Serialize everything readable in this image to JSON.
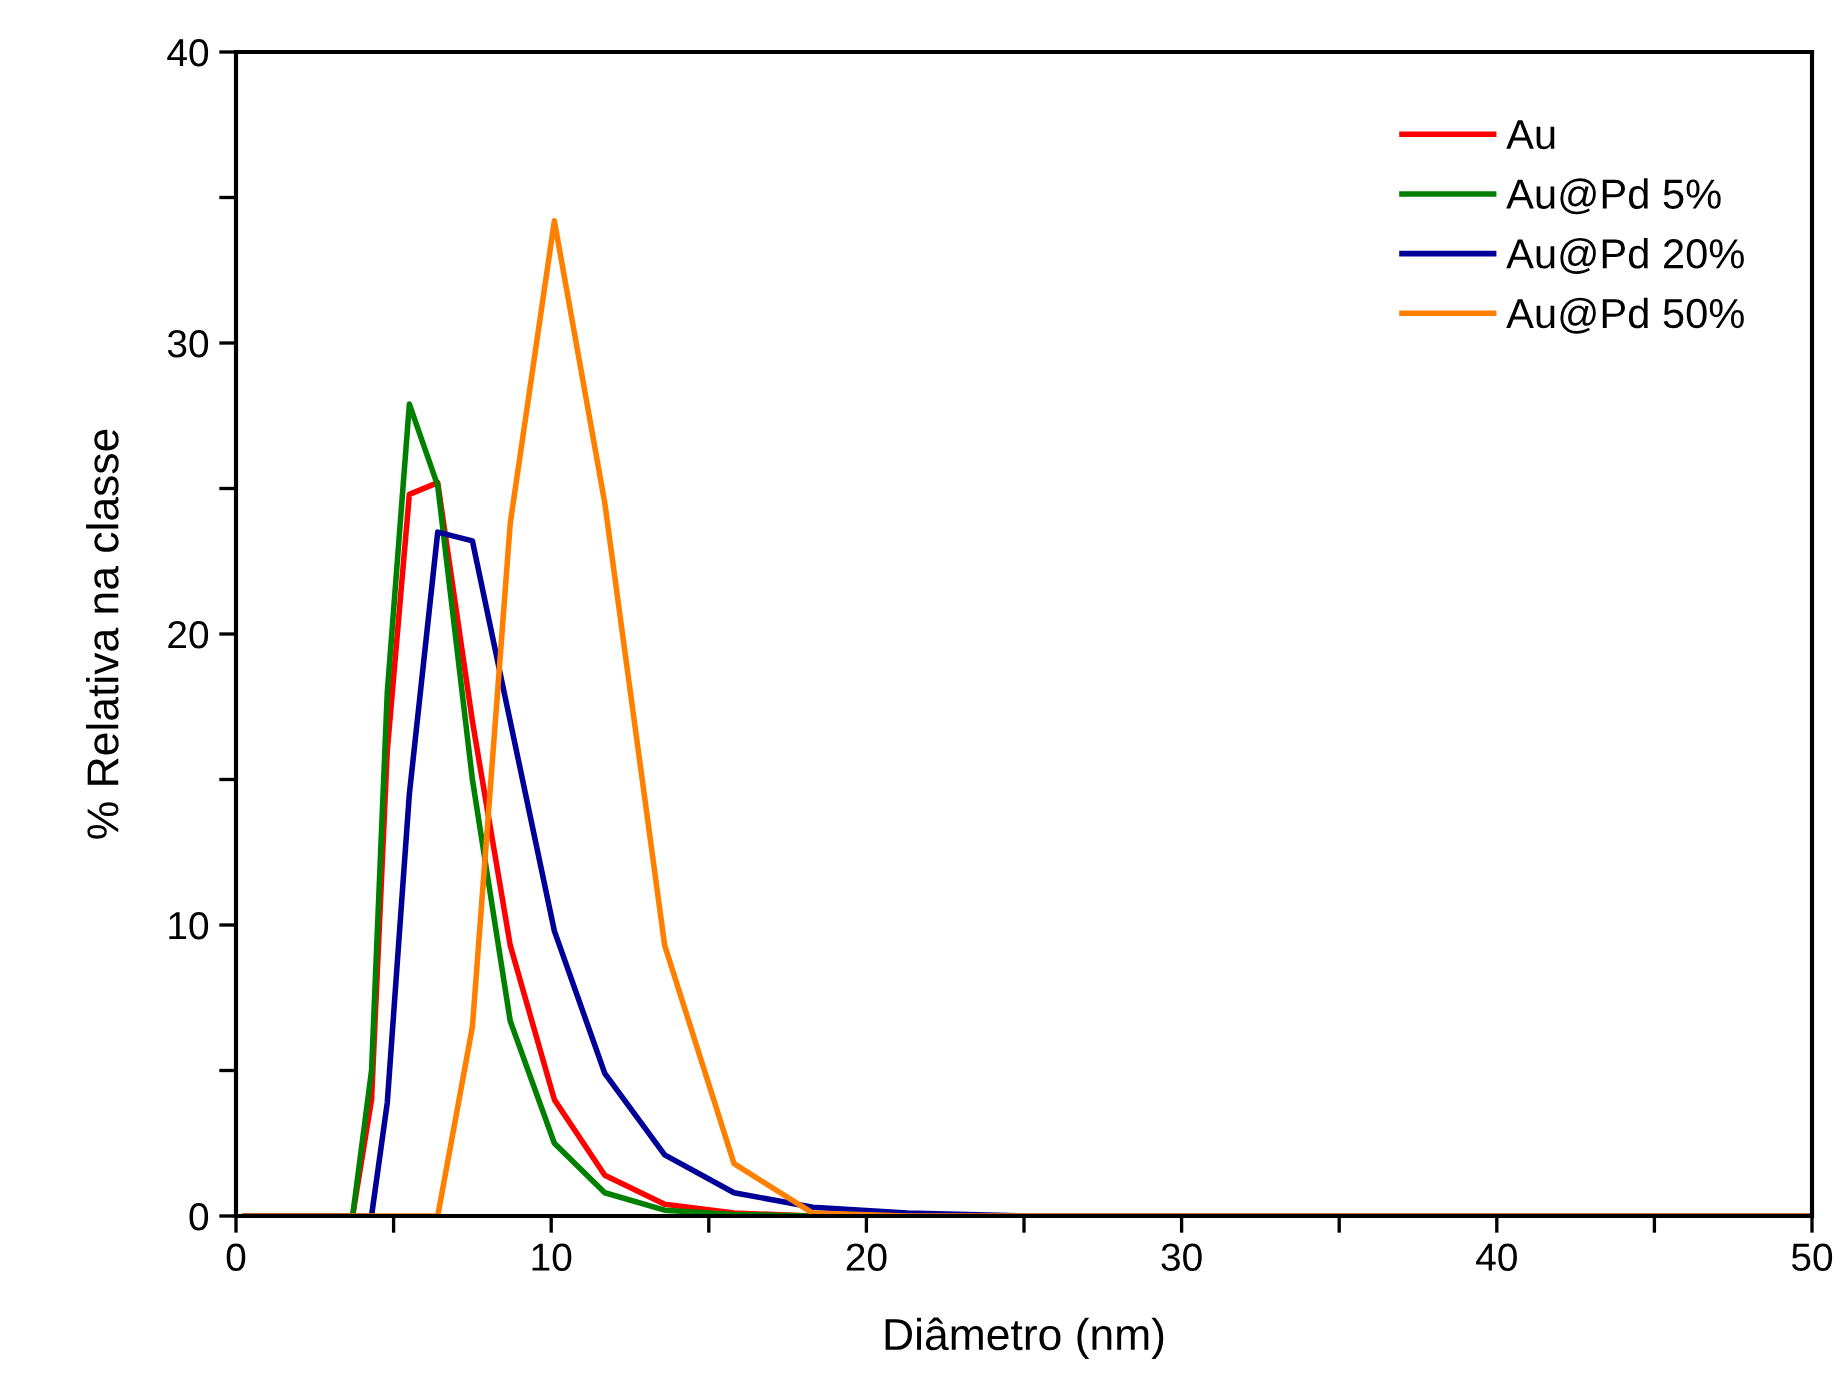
{
  "chart_data": {
    "type": "line",
    "xlabel": "Diâmetro (nm)",
    "ylabel": "% Relativa na classe",
    "x": [
      0.3,
      3.7,
      4.3,
      4.8,
      5.5,
      6.4,
      7.5,
      8.7,
      10.1,
      11.7,
      13.6,
      15.8,
      18.3,
      21.3,
      25,
      50
    ],
    "series": [
      {
        "name": "Au",
        "color": "#ff0000",
        "values": [
          0,
          0,
          4,
          16,
          24.8,
          25.2,
          17,
          9.3,
          4,
          1.4,
          0.4,
          0.1,
          0,
          0,
          null,
          null
        ]
      },
      {
        "name": "Au@Pd 5%",
        "color": "#008000",
        "values": [
          0,
          0,
          5,
          18,
          27.9,
          25.1,
          15,
          6.7,
          2.5,
          0.8,
          0.2,
          0.05,
          0,
          0,
          null,
          null
        ]
      },
      {
        "name": "Au@Pd 20%",
        "color": "#000099",
        "values": [
          0,
          0,
          0,
          3.9,
          14.5,
          23.5,
          23.2,
          17,
          9.8,
          4.9,
          2.1,
          0.8,
          0.3,
          0.1,
          0,
          0
        ]
      },
      {
        "name": "Au@Pd 50%",
        "color": "#ff8000",
        "values": [
          0,
          0,
          0,
          0,
          0,
          0,
          6.5,
          23.8,
          34.2,
          24.5,
          9.3,
          1.8,
          0.1,
          0,
          0,
          0
        ]
      }
    ],
    "xlim": [
      0,
      50
    ],
    "ylim": [
      0,
      40
    ],
    "xticks": [
      0,
      {
        "value": 5,
        "label": null
      },
      10,
      {
        "value": 15,
        "label": null
      },
      20,
      {
        "value": 25,
        "label": null
      },
      30,
      {
        "value": 35,
        "label": null
      },
      40,
      {
        "value": 45,
        "label": null
      },
      50
    ],
    "yticks": [
      0,
      {
        "value": 5,
        "label": null
      },
      10,
      {
        "value": 15,
        "label": null
      },
      20,
      {
        "value": 25,
        "label": null
      },
      30,
      {
        "value": 35,
        "label": null
      },
      40
    ],
    "legend": "top right",
    "grid": false,
    "marker": "none",
    "line_style": "solid"
  }
}
